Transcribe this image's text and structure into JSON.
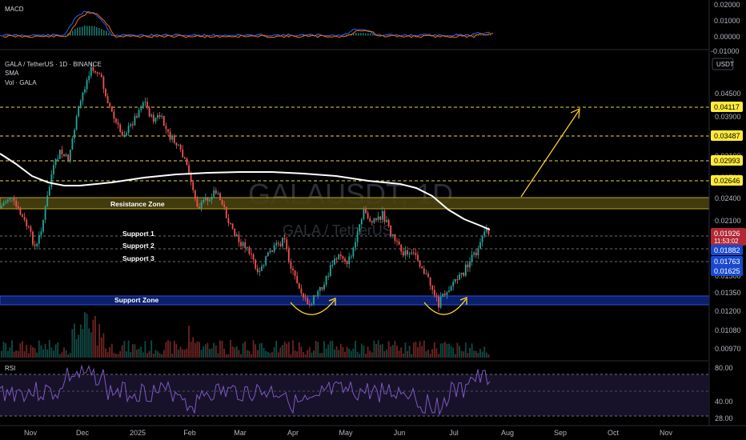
{
  "macd": {
    "title": "MACD",
    "ticks": [
      "0.02000",
      "0.01000",
      "0.00000",
      "-0.01000"
    ]
  },
  "main": {
    "legend_symbol": "GALA / TetherUS · 1D · BINANCE",
    "legend_sma": "SMA",
    "legend_vol": "Vol · GALA",
    "currency": "USDT",
    "watermark_main": "GALAUSDT, 1D",
    "watermark_sub": "GALA / TetherUS",
    "zones": {
      "resistance": "Resistance Zone",
      "support": "Support Zone"
    },
    "support_labels": [
      "Support 1",
      "Support 2",
      "Support 3"
    ],
    "price_ticks": [
      "0.04500",
      "0.03900",
      "0.03400",
      "0.03100",
      "0.02700",
      "0.02400",
      "0.02100",
      "0.01800",
      "0.01500",
      "0.01350",
      "0.01200",
      "0.01080",
      "0.00970"
    ],
    "level_badges": [
      {
        "value": "0.04117",
        "color": "#ffeb3b",
        "text_color": "#000000"
      },
      {
        "value": "0.03487",
        "color": "#ffeb3b",
        "text_color": "#000000"
      },
      {
        "value": "0.02993",
        "color": "#ffeb3b",
        "text_color": "#000000"
      },
      {
        "value": "0.02646",
        "color": "#ffeb3b",
        "text_color": "#000000"
      }
    ],
    "current_price": {
      "value": "0.01926",
      "countdown": "11:53:02",
      "color": "#b22833"
    },
    "support_badges": [
      {
        "value": "0.01882",
        "color": "#1848cc"
      },
      {
        "value": "0.01763",
        "color": "#1848cc"
      },
      {
        "value": "0.01625",
        "color": "#1848cc"
      }
    ]
  },
  "rsi": {
    "title": "RSI",
    "ticks": [
      "80.00",
      "40.00",
      "28.00"
    ]
  },
  "time_axis": {
    "labels": [
      "Nov",
      "Dec",
      "2025",
      "Feb",
      "Mar",
      "Apr",
      "May",
      "Jun",
      "Jul",
      "Aug",
      "Sep",
      "Oct",
      "Nov"
    ]
  },
  "colors": {
    "up": "#26a69a",
    "down": "#ef5350",
    "sma": "#ffffff",
    "dashed_level": "#e6d84a",
    "resistance_zone": "#c9b72d",
    "support_zone": "#1f3fae",
    "annotation": "#ffd726",
    "rsi_line": "#7e57c2",
    "macd_line": "#2962ff",
    "signal_line": "#ff6d00"
  }
}
